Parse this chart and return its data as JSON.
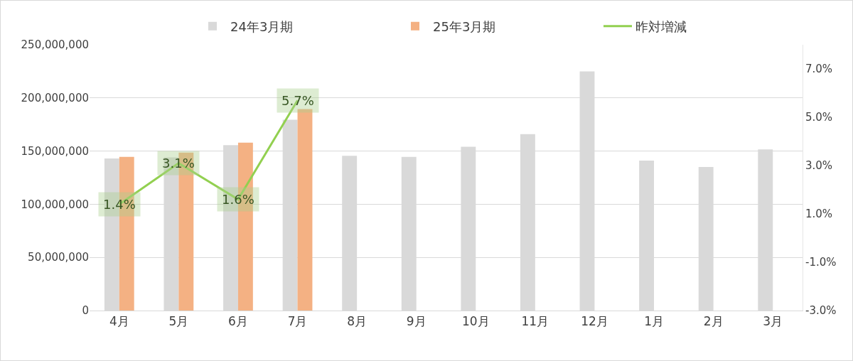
{
  "chart_data": {
    "type": "bar",
    "categories": [
      "4月",
      "5月",
      "6月",
      "7月",
      "8月",
      "9月",
      "10月",
      "11月",
      "12月",
      "1月",
      "2月",
      "3月"
    ],
    "series": [
      {
        "name": "24年3月期",
        "color": "#d9d9d9",
        "values": [
          143000000,
          144000000,
          155500000,
          179500000,
          145500000,
          144500000,
          154000000,
          166000000,
          225000000,
          141000000,
          135000000,
          151500000
        ]
      },
      {
        "name": "25年3月期",
        "color": "#f4b183",
        "values": [
          144500000,
          148500000,
          158000000,
          189500000,
          null,
          null,
          null,
          null,
          null,
          null,
          null,
          null
        ]
      },
      {
        "name": "昨対増減",
        "type": "line",
        "axis": "y2",
        "color": "#92d050",
        "values": [
          1.4,
          3.1,
          1.6,
          5.7,
          null,
          null,
          null,
          null,
          null,
          null,
          null,
          null
        ],
        "value_labels": [
          "1.4%",
          "3.1%",
          "1.6%",
          "5.7%",
          null,
          null,
          null,
          null,
          null,
          null,
          null,
          null
        ]
      }
    ],
    "ylim": [
      0,
      250000000
    ],
    "yticks": [
      {
        "value": 0,
        "label": "0"
      },
      {
        "value": 50000000,
        "label": "50,000,000"
      },
      {
        "value": 100000000,
        "label": "100,000,000"
      },
      {
        "value": 150000000,
        "label": "150,000,000"
      },
      {
        "value": 200000000,
        "label": "200,000,000"
      },
      {
        "value": 250000000,
        "label": "250,000,000"
      }
    ],
    "y2lim": [
      -3,
      8
    ],
    "y2ticks": [
      {
        "value": -3,
        "label": "-3.0%"
      },
      {
        "value": -1,
        "label": "-1.0%"
      },
      {
        "value": 1,
        "label": "1.0%"
      },
      {
        "value": 3,
        "label": "3.0%"
      },
      {
        "value": 5,
        "label": "5.0%"
      },
      {
        "value": 7,
        "label": "7.0%"
      }
    ],
    "grid": "y",
    "legend": "top right",
    "marker": "none",
    "line_style": "solid"
  }
}
